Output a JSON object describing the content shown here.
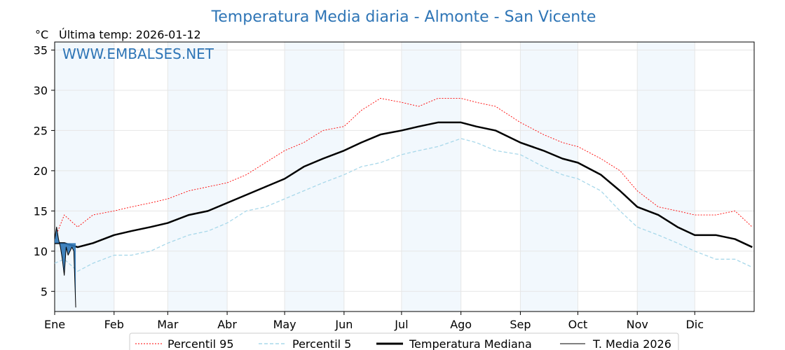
{
  "chart_data": {
    "type": "line",
    "title": "Temperatura Media diaria - Almonte - San Vicente",
    "unit_label": "°C",
    "last_temp_label": "Última temp: 2026-01-12",
    "watermark": "WWW.EMBALSES.NET",
    "ylim": [
      2.5,
      36
    ],
    "yticks": [
      5,
      10,
      15,
      20,
      25,
      30,
      35
    ],
    "xlim": [
      0,
      365
    ],
    "months": [
      {
        "label": "Ene",
        "day": 0
      },
      {
        "label": "Feb",
        "day": 31
      },
      {
        "label": "Mar",
        "day": 59
      },
      {
        "label": "Abr",
        "day": 90
      },
      {
        "label": "May",
        "day": 120
      },
      {
        "label": "Jun",
        "day": 151
      },
      {
        "label": "Jul",
        "day": 181
      },
      {
        "label": "Ago",
        "day": 212
      },
      {
        "label": "Sep",
        "day": 243
      },
      {
        "label": "Oct",
        "day": 273
      },
      {
        "label": "Nov",
        "day": 304
      },
      {
        "label": "Dic",
        "day": 334
      }
    ],
    "shaded_months": [
      [
        0,
        31
      ],
      [
        59,
        90
      ],
      [
        120,
        151
      ],
      [
        181,
        212
      ],
      [
        243,
        273
      ],
      [
        304,
        334
      ]
    ],
    "grid": true,
    "legend_position": "bottom",
    "series": [
      {
        "name": "Percentil 95",
        "color": "#ff0000",
        "style": "dotted",
        "x": [
          0,
          5,
          12,
          20,
          31,
          40,
          50,
          59,
          70,
          80,
          90,
          100,
          110,
          120,
          130,
          140,
          151,
          160,
          170,
          181,
          190,
          200,
          212,
          220,
          230,
          243,
          255,
          265,
          273,
          285,
          295,
          304,
          315,
          325,
          334,
          345,
          355,
          364
        ],
        "y": [
          11.5,
          14.5,
          13.0,
          14.5,
          15.0,
          15.5,
          16.0,
          16.5,
          17.5,
          18.0,
          18.5,
          19.5,
          21.0,
          22.5,
          23.5,
          25.0,
          25.5,
          27.5,
          29.0,
          28.5,
          28.0,
          29.0,
          29.0,
          28.5,
          28.0,
          26.0,
          24.5,
          23.5,
          23.0,
          21.5,
          20.0,
          17.5,
          15.5,
          15.0,
          14.5,
          14.5,
          15.0,
          13.0
        ]
      },
      {
        "name": "Percentil 5",
        "color": "#a8d8ea",
        "style": "dashed",
        "x": [
          0,
          5,
          12,
          20,
          31,
          40,
          50,
          59,
          70,
          80,
          90,
          100,
          110,
          120,
          130,
          140,
          151,
          160,
          170,
          181,
          190,
          200,
          212,
          220,
          230,
          243,
          255,
          265,
          273,
          285,
          295,
          304,
          315,
          325,
          334,
          345,
          355,
          364
        ],
        "y": [
          8.5,
          9.0,
          7.5,
          8.5,
          9.5,
          9.5,
          10.0,
          11.0,
          12.0,
          12.5,
          13.5,
          15.0,
          15.5,
          16.5,
          17.5,
          18.5,
          19.5,
          20.5,
          21.0,
          22.0,
          22.5,
          23.0,
          24.0,
          23.5,
          22.5,
          22.0,
          20.5,
          19.5,
          19.0,
          17.5,
          15.0,
          13.0,
          12.0,
          11.0,
          10.0,
          9.0,
          9.0,
          8.0
        ]
      },
      {
        "name": "Temperatura Mediana",
        "color": "#000000",
        "style": "solid-thick",
        "x": [
          0,
          5,
          12,
          20,
          31,
          40,
          50,
          59,
          70,
          80,
          90,
          100,
          110,
          120,
          130,
          140,
          151,
          160,
          170,
          181,
          190,
          200,
          212,
          220,
          230,
          243,
          255,
          265,
          273,
          285,
          295,
          304,
          315,
          325,
          334,
          345,
          355,
          364
        ],
        "y": [
          11.0,
          11.0,
          10.5,
          11.0,
          12.0,
          12.5,
          13.0,
          13.5,
          14.5,
          15.0,
          16.0,
          17.0,
          18.0,
          19.0,
          20.5,
          21.5,
          22.5,
          23.5,
          24.5,
          25.0,
          25.5,
          26.0,
          26.0,
          25.5,
          25.0,
          23.5,
          22.5,
          21.5,
          21.0,
          19.5,
          17.5,
          15.5,
          14.5,
          13.0,
          12.0,
          12.0,
          11.5,
          10.5
        ]
      },
      {
        "name": "T. Media 2026",
        "color": "#000000",
        "fill": "#2e75b6",
        "style": "solid-thin",
        "x": [
          0,
          1,
          2,
          3,
          4,
          5,
          6,
          7,
          8,
          9,
          10,
          11
        ],
        "y": [
          11.5,
          13.0,
          11.5,
          10.5,
          9.0,
          7.0,
          10.5,
          9.5,
          10.0,
          10.5,
          10.0,
          3.0
        ]
      }
    ]
  }
}
